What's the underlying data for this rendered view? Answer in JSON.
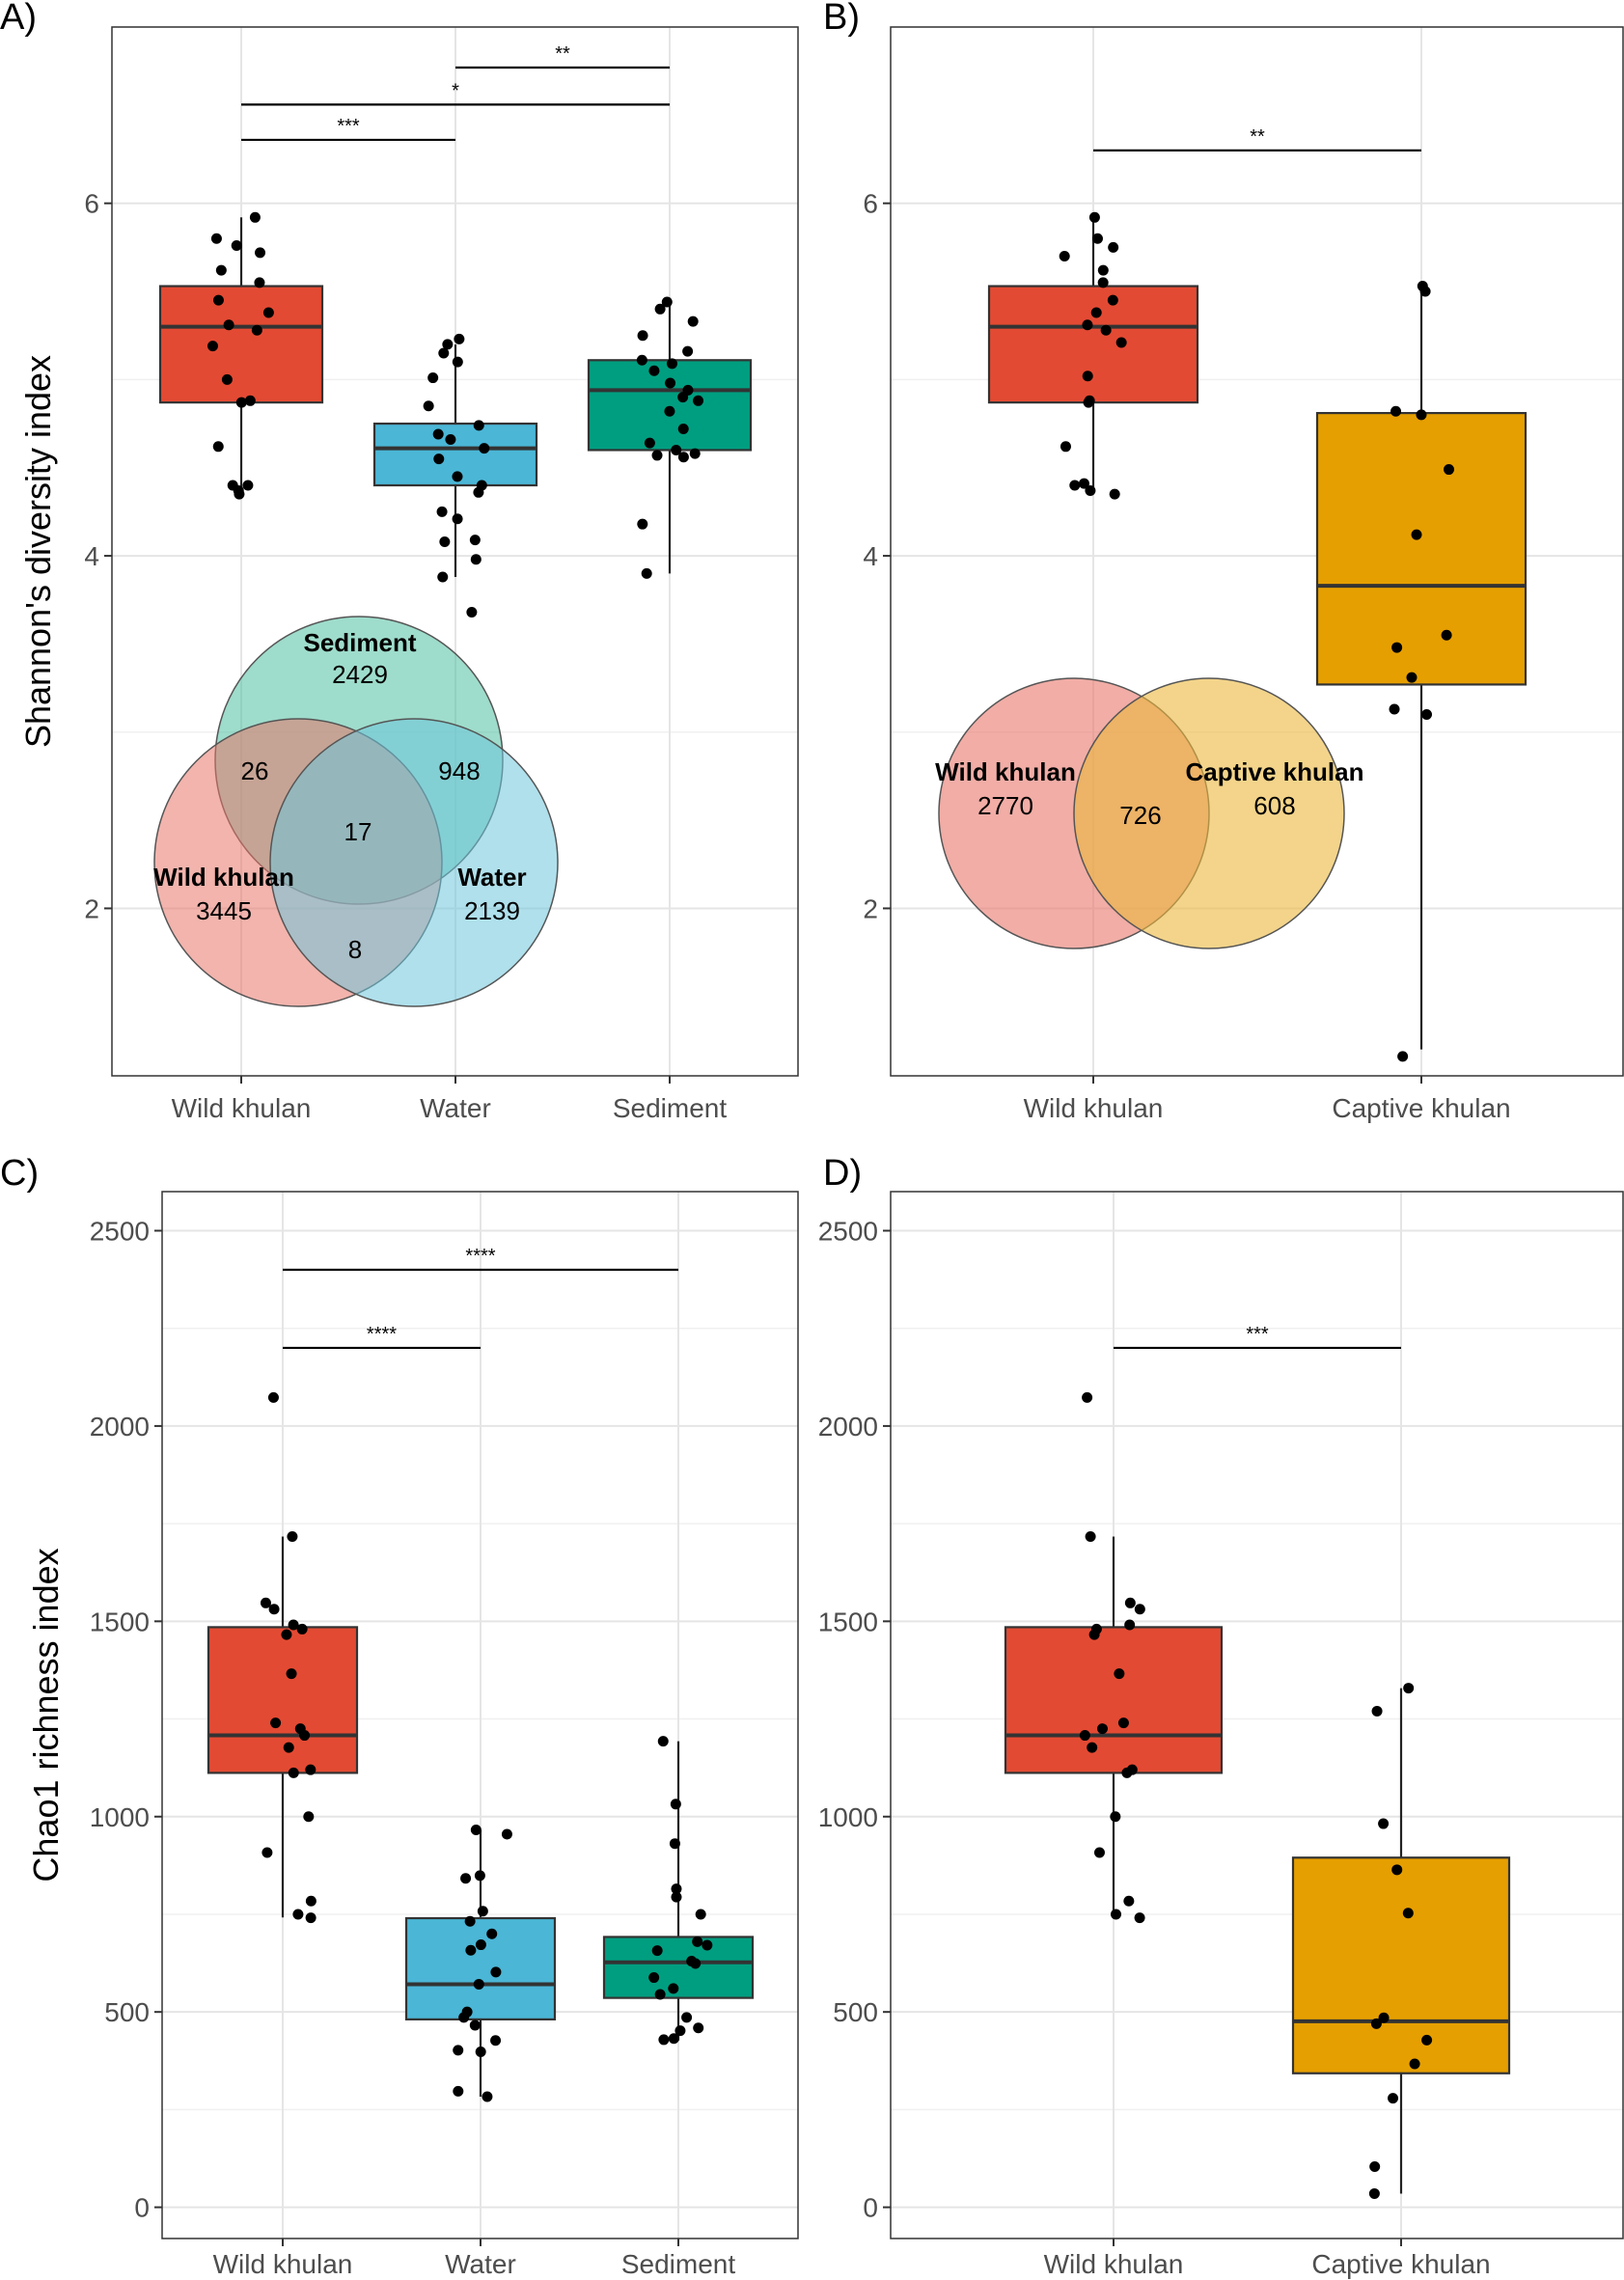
{
  "chart_data": [
    {
      "panel": "A)",
      "type": "boxplot",
      "ylabel": "Shannon's diversity index",
      "ylim": [
        1.05,
        7.0
      ],
      "yticks": [
        2,
        4,
        6
      ],
      "categories": [
        "Wild khulan",
        "Water",
        "Sediment"
      ],
      "colors": [
        "#e34a33",
        "#4bb6d6",
        "#009e80"
      ],
      "boxes": [
        {
          "q1": 4.87,
          "median": 5.3,
          "q3": 5.53,
          "whisker_low": 4.35,
          "whisker_high": 5.92
        },
        {
          "q1": 4.4,
          "median": 4.61,
          "q3": 4.75,
          "whisker_low": 3.88,
          "whisker_high": 5.2
        },
        {
          "q1": 4.6,
          "median": 4.94,
          "q3": 5.11,
          "whisker_low": 3.9,
          "whisker_high": 5.44
        }
      ],
      "points": [
        [
          5.92,
          5.8,
          5.76,
          5.72,
          5.62,
          5.55,
          5.45,
          5.38,
          5.31,
          5.28,
          5.19,
          5.0,
          4.88,
          4.87,
          4.62,
          4.4,
          4.4,
          4.37,
          4.35
        ],
        [
          5.23,
          5.2,
          5.15,
          5.1,
          5.01,
          4.85,
          4.74,
          4.69,
          4.66,
          4.61,
          4.55,
          4.45,
          4.4,
          4.36,
          4.25,
          4.21,
          4.09,
          4.08,
          3.98,
          3.88,
          3.68
        ],
        [
          5.44,
          5.4,
          5.33,
          5.25,
          5.16,
          5.11,
          5.09,
          5.05,
          4.98,
          4.94,
          4.9,
          4.88,
          4.82,
          4.72,
          4.64,
          4.6,
          4.58,
          4.57,
          4.56,
          4.18,
          3.9
        ]
      ],
      "significance": [
        {
          "from": 0,
          "to": 1,
          "y": 6.36,
          "label": "***"
        },
        {
          "from": 0,
          "to": 2,
          "y": 6.56,
          "label": "*"
        },
        {
          "from": 1,
          "to": 2,
          "y": 6.77,
          "label": "**"
        }
      ],
      "venn": {
        "sets": [
          {
            "name": "Sediment",
            "count": "2429",
            "color": "#4fbfa0"
          },
          {
            "name": "Wild khulan",
            "count": "3445",
            "color": "#e8766a"
          },
          {
            "name": "Water",
            "count": "2139",
            "color": "#6ec6dd"
          }
        ],
        "overlaps": {
          "wild_sediment": "26",
          "water_sediment": "948",
          "all": "17",
          "wild_water": "8"
        }
      }
    },
    {
      "panel": "B)",
      "type": "boxplot",
      "ylabel": "",
      "ylim": [
        1.05,
        7.0
      ],
      "yticks": [
        2,
        4,
        6
      ],
      "categories": [
        "Wild khulan",
        "Captive khulan"
      ],
      "colors": [
        "#e34a33",
        "#e69f00"
      ],
      "boxes": [
        {
          "q1": 4.87,
          "median": 5.3,
          "q3": 5.53,
          "whisker_low": 4.35,
          "whisker_high": 5.92
        },
        {
          "q1": 3.27,
          "median": 3.83,
          "q3": 4.81,
          "whisker_low": 1.2,
          "whisker_high": 5.53
        }
      ],
      "points": [
        [
          5.92,
          5.8,
          5.75,
          5.7,
          5.62,
          5.55,
          5.45,
          5.38,
          5.31,
          5.28,
          5.21,
          5.02,
          4.88,
          4.87,
          4.62,
          4.41,
          4.4,
          4.37,
          4.35
        ],
        [
          5.53,
          5.5,
          4.82,
          4.8,
          4.49,
          4.12,
          3.55,
          3.48,
          3.31,
          3.13,
          3.1,
          1.16
        ]
      ],
      "significance": [
        {
          "from": 0,
          "to": 1,
          "y": 6.3,
          "label": "**"
        }
      ],
      "venn": {
        "sets": [
          {
            "name": "Wild khulan",
            "count": "2770",
            "color": "#e8766a"
          },
          {
            "name": "Captive khulan",
            "count": "608",
            "color": "#ebb83c"
          }
        ],
        "overlaps": {
          "both": "726"
        }
      }
    },
    {
      "panel": "C)",
      "type": "boxplot",
      "ylabel": "Chao1 richness index",
      "ylim": [
        -80,
        2600
      ],
      "yticks": [
        0,
        500,
        1000,
        1500,
        2000,
        2500
      ],
      "categories": [
        "Wild khulan",
        "Water",
        "Sediment"
      ],
      "colors": [
        "#e34a33",
        "#4bb6d6",
        "#009e80"
      ],
      "boxes": [
        {
          "q1": 1112,
          "median": 1208,
          "q3": 1485,
          "whisker_low": 742,
          "whisker_high": 1717
        },
        {
          "q1": 481,
          "median": 571,
          "q3": 740,
          "whisker_low": 283,
          "whisker_high": 966
        },
        {
          "q1": 536,
          "median": 627,
          "q3": 692,
          "whisker_low": 427,
          "whisker_high": 1193
        }
      ],
      "points": [
        [
          2073,
          1717,
          1547,
          1531,
          1491,
          1480,
          1466,
          1366,
          1240,
          1225,
          1208,
          1177,
          1120,
          1112,
          1000,
          908,
          784,
          750,
          741
        ],
        [
          966,
          955,
          849,
          842,
          758,
          732,
          700,
          672,
          658,
          602,
          571,
          500,
          486,
          466,
          427,
          402,
          398,
          297,
          283
        ],
        [
          1193,
          1032,
          931,
          815,
          794,
          750,
          680,
          671,
          657,
          630,
          624,
          588,
          560,
          545,
          486,
          459,
          452,
          432,
          429
        ]
      ],
      "significance": [
        {
          "from": 0,
          "to": 1,
          "y": 2200,
          "label": "****"
        },
        {
          "from": 0,
          "to": 2,
          "y": 2400,
          "label": "****"
        }
      ]
    },
    {
      "panel": "D)",
      "type": "boxplot",
      "ylabel": "",
      "ylim": [
        -80,
        2600
      ],
      "yticks": [
        0,
        500,
        1000,
        1500,
        2000,
        2500
      ],
      "categories": [
        "Wild khulan",
        "Captive khulan"
      ],
      "colors": [
        "#e34a33",
        "#e69f00"
      ],
      "boxes": [
        {
          "q1": 1112,
          "median": 1208,
          "q3": 1485,
          "whisker_low": 742,
          "whisker_high": 1717
        },
        {
          "q1": 343,
          "median": 476,
          "q3": 895,
          "whisker_low": 35,
          "whisker_high": 1329
        }
      ],
      "points": [
        [
          2073,
          1717,
          1547,
          1531,
          1491,
          1480,
          1466,
          1366,
          1240,
          1225,
          1208,
          1177,
          1120,
          1112,
          1000,
          908,
          784,
          750,
          741
        ],
        [
          1329,
          1270,
          982,
          864,
          753,
          485,
          470,
          428,
          367,
          279,
          104,
          35
        ]
      ],
      "significance": [
        {
          "from": 0,
          "to": 1,
          "y": 2200,
          "label": "***"
        }
      ]
    }
  ]
}
